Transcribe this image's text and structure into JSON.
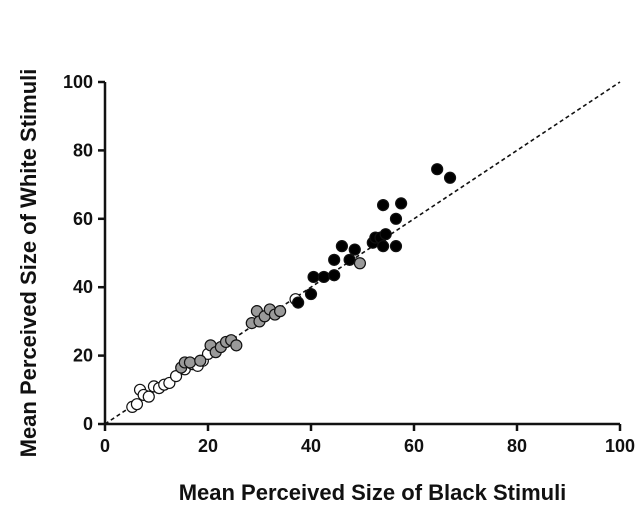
{
  "chart_data": {
    "type": "scatter",
    "xlabel": "Mean Perceived Size of Black Stimuli",
    "ylabel": "Mean Perceived Size of White Stimuli",
    "xlim": [
      0,
      100
    ],
    "ylim": [
      0,
      100
    ],
    "xticks": [
      "0",
      "20",
      "40",
      "60",
      "80",
      "100"
    ],
    "yticks": [
      "0",
      "20",
      "40",
      "60",
      "80",
      "100"
    ],
    "grid": false,
    "reference_line": {
      "style": "dashed",
      "from": [
        0,
        0
      ],
      "to": [
        100,
        100
      ],
      "color": "#111111"
    },
    "series": [
      {
        "fill": "#ffffff",
        "points": [
          [
            5.3,
            5.0
          ],
          [
            6.2,
            5.8
          ],
          [
            6.8,
            10.0
          ],
          [
            7.5,
            8.5
          ],
          [
            8.5,
            8.0
          ],
          [
            9.5,
            11.0
          ],
          [
            10.5,
            10.5
          ],
          [
            11.5,
            11.5
          ],
          [
            12.5,
            12.0
          ],
          [
            13.8,
            14.0
          ],
          [
            15.5,
            16.0
          ],
          [
            17.0,
            17.5
          ],
          [
            18.0,
            17.0
          ],
          [
            19.0,
            18.5
          ],
          [
            20.0,
            20.5
          ],
          [
            37.0,
            36.5
          ]
        ]
      },
      {
        "fill": "#9a9a9a",
        "points": [
          [
            14.8,
            16.5
          ],
          [
            15.5,
            18.0
          ],
          [
            16.5,
            18.0
          ],
          [
            18.5,
            18.5
          ],
          [
            20.5,
            23.0
          ],
          [
            21.5,
            21.0
          ],
          [
            22.5,
            22.5
          ],
          [
            23.5,
            24.0
          ],
          [
            24.5,
            24.5
          ],
          [
            25.5,
            23.0
          ],
          [
            28.5,
            29.5
          ],
          [
            29.5,
            33.0
          ],
          [
            30.0,
            30.0
          ],
          [
            31.0,
            31.5
          ],
          [
            32.0,
            33.5
          ],
          [
            33.0,
            32.0
          ],
          [
            34.0,
            33.0
          ],
          [
            49.5,
            47.0
          ]
        ]
      },
      {
        "fill": "#000000",
        "points": [
          [
            37.5,
            35.5
          ],
          [
            40.0,
            38.0
          ],
          [
            40.5,
            43.0
          ],
          [
            42.5,
            43.0
          ],
          [
            44.5,
            43.5
          ],
          [
            44.5,
            48.0
          ],
          [
            46.0,
            52.0
          ],
          [
            47.5,
            48.0
          ],
          [
            48.5,
            51.0
          ],
          [
            52.0,
            53.0
          ],
          [
            52.5,
            54.5
          ],
          [
            53.5,
            54.5
          ],
          [
            54.0,
            52.0
          ],
          [
            54.5,
            55.5
          ],
          [
            54.0,
            64.0
          ],
          [
            56.5,
            52.0
          ],
          [
            56.5,
            60.0
          ],
          [
            57.5,
            64.5
          ],
          [
            64.5,
            74.5
          ],
          [
            67.0,
            72.0
          ]
        ]
      }
    ]
  }
}
